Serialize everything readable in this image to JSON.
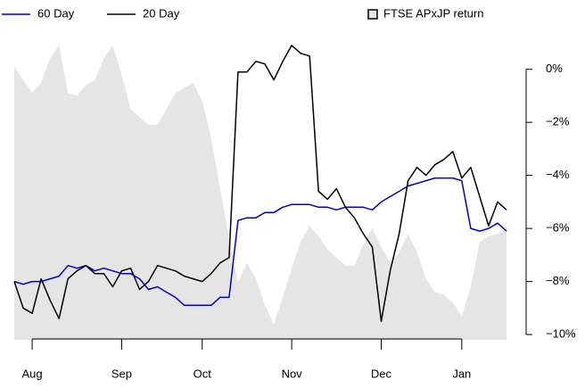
{
  "chart_data": {
    "type": "line",
    "x": [
      0,
      2,
      4,
      6,
      8,
      10,
      12,
      14,
      16,
      18,
      20,
      22,
      24,
      26,
      28,
      30,
      32,
      34,
      36,
      38,
      40,
      42,
      44,
      46,
      48,
      50,
      52,
      54,
      56,
      58,
      60,
      62,
      64,
      66,
      68,
      70,
      72,
      74,
      76,
      78,
      80,
      82,
      84,
      86,
      88,
      90,
      92,
      94,
      96,
      98,
      100,
      102,
      104,
      106,
      108,
      110
    ],
    "xlim": [
      0,
      110
    ],
    "xticks": [
      {
        "value": 4,
        "label": "Aug"
      },
      {
        "value": 24,
        "label": "Sep"
      },
      {
        "value": 42,
        "label": "Oct"
      },
      {
        "value": 62,
        "label": "Nov"
      },
      {
        "value": 82,
        "label": "Dec"
      },
      {
        "value": 100,
        "label": "Jan"
      }
    ],
    "ylim": [
      -10.2,
      1.2
    ],
    "yticks": [
      {
        "value": 0,
        "label": "0%"
      },
      {
        "value": -2,
        "label": "−2%"
      },
      {
        "value": -4,
        "label": "−4%"
      },
      {
        "value": -6,
        "label": "−6%"
      },
      {
        "value": -8,
        "label": "−8%"
      },
      {
        "value": -10,
        "label": "−10%"
      }
    ],
    "series": [
      {
        "name": "60 Day",
        "color": "#0000cc",
        "type": "line",
        "values": [
          -8.0,
          -8.1,
          -8.0,
          -8.0,
          -7.9,
          -7.8,
          -7.4,
          -7.5,
          -7.4,
          -7.6,
          -7.5,
          -7.6,
          -7.7,
          -7.7,
          -7.9,
          -8.3,
          -8.2,
          -8.4,
          -8.6,
          -8.9,
          -8.9,
          -8.9,
          -8.9,
          -8.6,
          -8.6,
          -5.7,
          -5.6,
          -5.6,
          -5.4,
          -5.4,
          -5.2,
          -5.1,
          -5.1,
          -5.1,
          -5.2,
          -5.2,
          -5.3,
          -5.2,
          -5.2,
          -5.2,
          -5.3,
          -5.0,
          -4.8,
          -4.6,
          -4.4,
          -4.3,
          -4.2,
          -4.1,
          -4.1,
          -4.1,
          -4.2,
          -6.0,
          -6.1,
          -6.0,
          -5.8,
          -6.1
        ]
      },
      {
        "name": "20 Day",
        "color": "#000000",
        "type": "line",
        "values": [
          -8.0,
          -9.0,
          -9.2,
          -7.9,
          -8.7,
          -9.4,
          -7.9,
          -7.6,
          -7.4,
          -7.7,
          -7.7,
          -8.2,
          -7.6,
          -7.5,
          -8.3,
          -8.0,
          -7.4,
          -7.5,
          -7.6,
          -7.8,
          -7.9,
          -8.0,
          -7.7,
          -7.3,
          -7.1,
          -0.1,
          -0.1,
          0.3,
          0.2,
          -0.4,
          0.3,
          0.9,
          0.6,
          0.5,
          -4.6,
          -4.9,
          -4.5,
          -5.2,
          -5.6,
          -6.2,
          -6.7,
          -9.5,
          -7.6,
          -6.2,
          -4.2,
          -3.7,
          -4.0,
          -3.6,
          -3.4,
          -3.1,
          -4.1,
          -3.7,
          -4.8,
          -5.9,
          -5.0,
          -5.3
        ]
      },
      {
        "name": "FTSE APxJP return",
        "color": "#e5e5e5",
        "type": "area",
        "values": [
          0.1,
          -0.4,
          -0.9,
          -0.5,
          0.4,
          0.9,
          -0.9,
          -1.0,
          -0.6,
          -0.4,
          0.4,
          0.9,
          -0.2,
          -1.5,
          -1.8,
          -2.1,
          -2.1,
          -1.5,
          -0.9,
          -0.7,
          -0.5,
          -1.2,
          -2.6,
          -4.5,
          -6.4,
          -8.0,
          -7.3,
          -7.9,
          -8.9,
          -9.6,
          -8.6,
          -7.5,
          -6.5,
          -5.9,
          -6.3,
          -6.8,
          -7.1,
          -7.4,
          -7.4,
          -6.6,
          -6.0,
          -6.7,
          -7.3,
          -6.9,
          -6.2,
          -6.9,
          -7.9,
          -8.4,
          -8.5,
          -8.8,
          -9.3,
          -8.2,
          -6.5,
          -6.3,
          -6.2,
          -6.0
        ]
      }
    ]
  }
}
